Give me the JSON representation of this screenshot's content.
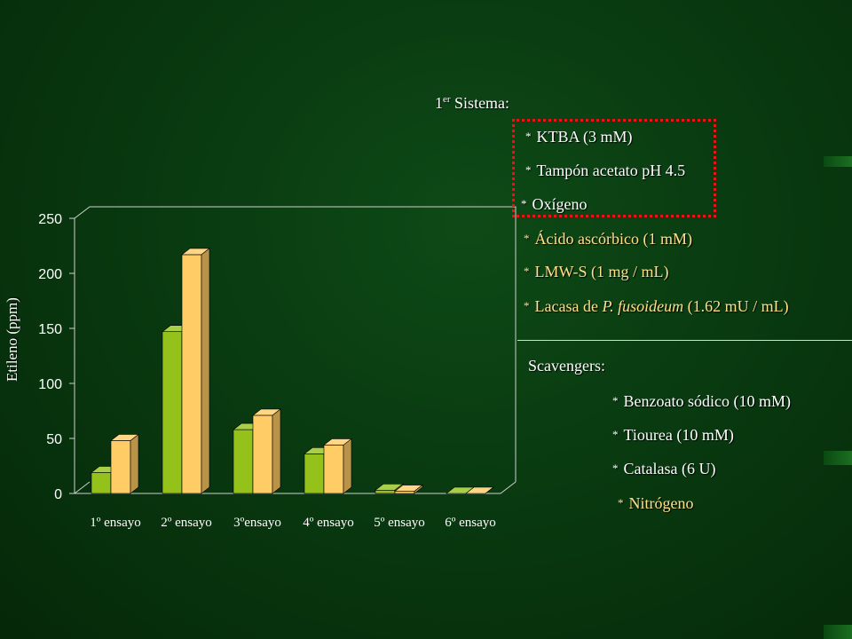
{
  "chart_data": {
    "type": "bar",
    "ylabel": "Etileno (ppm)",
    "xlabel": "",
    "ylim": [
      0,
      250
    ],
    "yticks": [
      "0",
      "50",
      "100",
      "150",
      "200",
      "250"
    ],
    "categories": [
      "1º ensayo",
      "2º ensayo",
      "3ºensayo",
      "4º ensayo",
      "5º ensayo",
      "6º ensayo"
    ],
    "series": [
      {
        "values": [
          19,
          147,
          58,
          36,
          3,
          0
        ],
        "color": "#94c21a"
      },
      {
        "values": [
          48,
          217,
          71,
          44,
          2,
          0
        ],
        "color": "#ffcc66"
      }
    ]
  },
  "panel": {
    "system_title": "1",
    "system_title_sup": "er",
    "system_title_rest": " Sistema:",
    "bullet": "*",
    "boxed_items": [
      "KTBA (3 mM)",
      "Tampón acetato pH 4.5",
      "Oxígeno"
    ],
    "extra_items": [
      {
        "text": "Ácido ascórbico (1 mM)"
      },
      {
        "text": "LMW-S (1 mg / mL)"
      },
      {
        "pre": "Lacasa de ",
        "italic": "P. fusoideum",
        "post": " (1.62 mU / mL)"
      }
    ],
    "scavengers_title": "Scavengers:",
    "scavengers": [
      "Benzoato sódico (10 mM)",
      "Tiourea (10 mM)",
      "Catalasa (6 U)",
      "Nitrógeno"
    ]
  }
}
